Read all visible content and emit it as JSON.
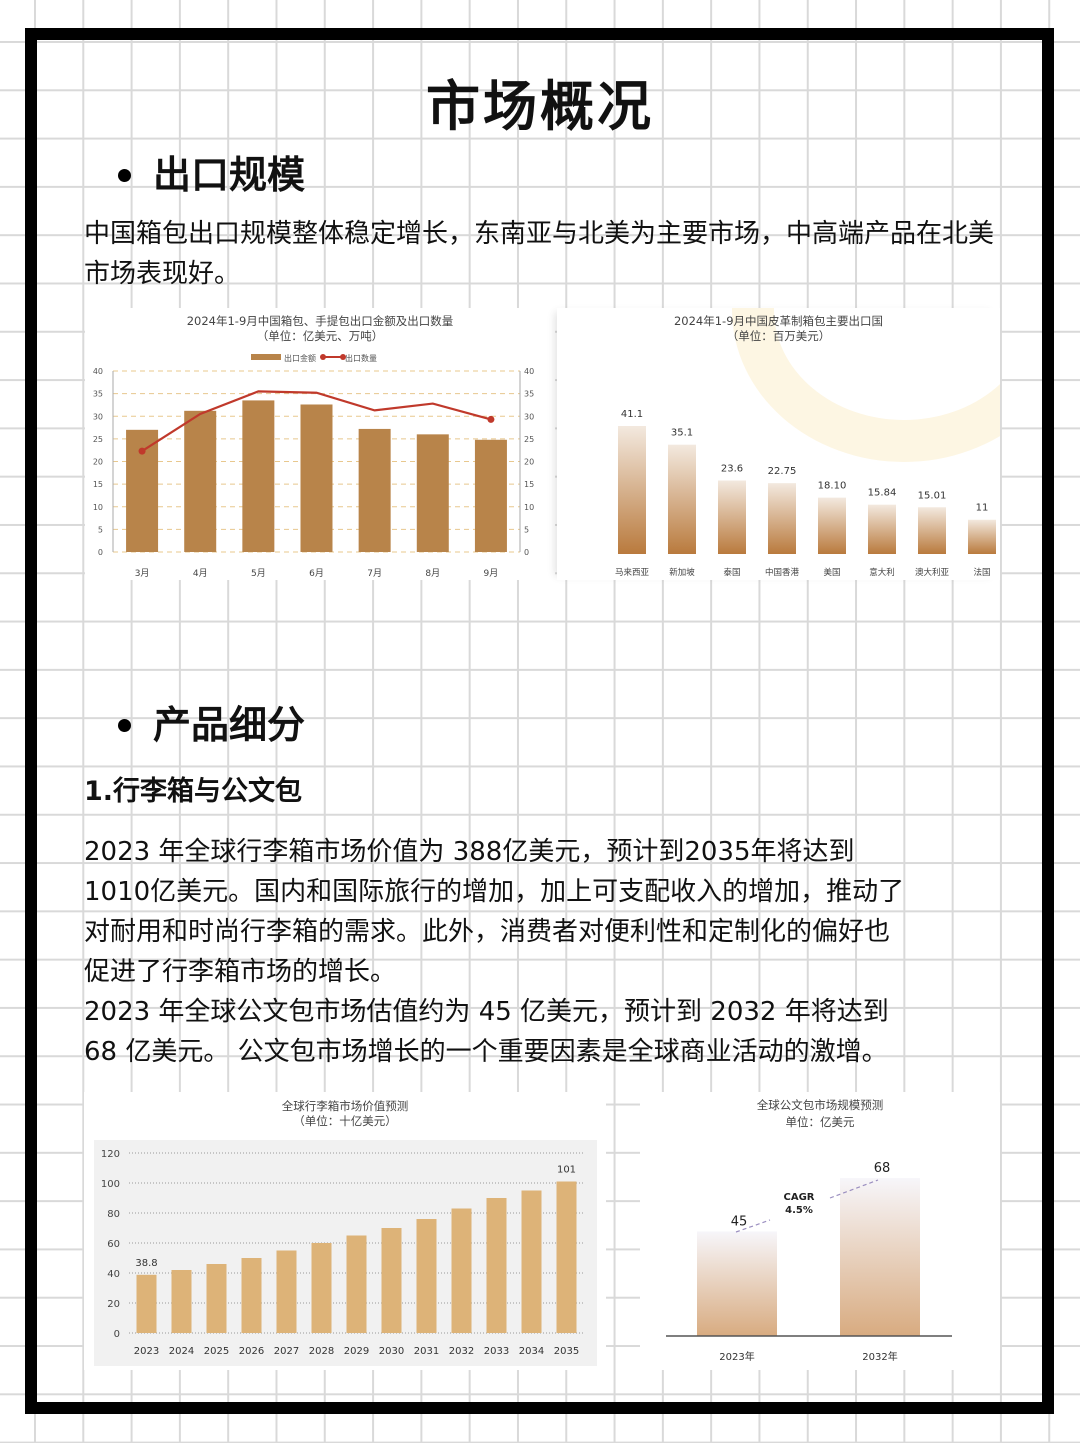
{
  "page": {
    "title": "市场概况",
    "section1": {
      "heading": "出口规模",
      "body": "中国箱包出口规模整体稳定增长，东南亚与北美为主要市场，中高端产品在北美市场表现好。"
    },
    "section2": {
      "heading": "产品细分",
      "subheading": "1.行李箱与公文包",
      "body_lines": [
        "2023 年全球行李箱市场价值为 388亿美元，预计到2035年将达到",
        "1010亿美元。国内和国际旅行的增加，加上可支配收入的增加，推动了",
        "对耐用和时尚行李箱的需求。此外，消费者对便利性和定制化的偏好也",
        "促进了行李箱市场的增长。",
        "2023 年全球公文包市场估值约为 45 亿美元，预计到 2032 年将达到",
        "68 亿美元。 公文包市场增长的一个重要因素是全球商业活动的激增。"
      ]
    }
  },
  "colors": {
    "frame": "#000000",
    "grid": "#d9d9d9",
    "bar_brown": "#b8844a",
    "line_red": "#c0392b",
    "bar_tan": "#ddb378",
    "gradient_top": "#f3e9df",
    "gradient_bottom": "#b97a3d"
  },
  "chart_data": [
    {
      "type": "bar+line",
      "title": "2024年1-9月中国箱包、手提包出口金额及出口数量",
      "subtitle": "（单位：亿美元、万吨）",
      "categories": [
        "3月",
        "4月",
        "5月",
        "6月",
        "7月",
        "8月",
        "9月"
      ],
      "series": [
        {
          "name": "出口金额",
          "type": "bar",
          "axis": "left",
          "values": [
            27.0,
            31.2,
            33.5,
            32.6,
            27.2,
            26.0,
            24.8
          ]
        },
        {
          "name": "出口数量",
          "type": "line",
          "axis": "right",
          "values": [
            22.3,
            30.5,
            35.5,
            35.2,
            31.3,
            32.8,
            29.3
          ]
        }
      ],
      "y_ticks": [
        "0",
        "5",
        "10",
        "15",
        "20",
        "25",
        "30",
        "35",
        "40"
      ],
      "ylim": [
        0,
        40
      ],
      "y2lim": [
        0,
        40
      ],
      "grid": "dashed horizontal",
      "legend_position": "top"
    },
    {
      "type": "bar",
      "title": "2024年1-9月中国皮革制箱包主要出口国",
      "subtitle": "（单位：百万美元）",
      "categories": [
        "马来西亚",
        "新加坡",
        "泰国",
        "中国香港",
        "美国",
        "意大利",
        "澳大利亚",
        "法国"
      ],
      "values": [
        41.1,
        35.1,
        23.6,
        22.75,
        18.1,
        15.84,
        15.01,
        11
      ],
      "labels": [
        "41.1",
        "35.1",
        "23.6",
        "22.75",
        "18.10",
        "15.84",
        "15.01",
        "11"
      ],
      "grid": "none"
    },
    {
      "type": "bar",
      "title": "全球行李箱市场价值预测",
      "subtitle": "（单位：十亿美元）",
      "categories": [
        "2023",
        "2024",
        "2025",
        "2026",
        "2027",
        "2028",
        "2029",
        "2030",
        "2031",
        "2032",
        "2033",
        "2034",
        "2035"
      ],
      "values": [
        38.8,
        42,
        46,
        50,
        55,
        60,
        65,
        70,
        76,
        83,
        90,
        95,
        101
      ],
      "labels": {
        "2023": "38.8",
        "2035": "101"
      },
      "y_ticks": [
        "0",
        "20",
        "40",
        "60",
        "80",
        "100",
        "120"
      ],
      "ylim": [
        0,
        120
      ],
      "grid": "dotted horizontal"
    },
    {
      "type": "bar",
      "title": "全球公文包市场规模预测",
      "subtitle": "单位：亿美元",
      "categories": [
        "2023年",
        "2032年"
      ],
      "values": [
        45,
        68
      ],
      "labels": [
        "45",
        "68"
      ],
      "annotation": {
        "line1": "CAGR",
        "line2": "4.5%"
      },
      "grid": "none"
    }
  ]
}
